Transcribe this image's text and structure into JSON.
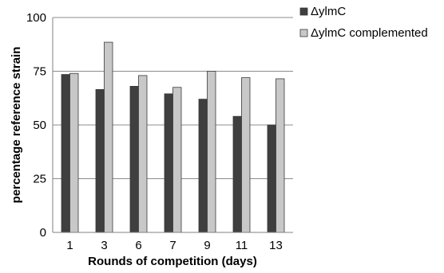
{
  "chart_data": {
    "type": "bar",
    "categories": [
      "1",
      "3",
      "6",
      "7",
      "9",
      "11",
      "13"
    ],
    "series": [
      {
        "name": "ΔylmC",
        "values": [
          73.5,
          66.5,
          68,
          64.5,
          62,
          54,
          50
        ],
        "color": "#3f3f3f"
      },
      {
        "name": "ΔylmC complemented",
        "values": [
          74,
          88.5,
          73,
          67.5,
          75,
          72,
          71.5
        ],
        "color": "#c8c8c8"
      }
    ],
    "title": "",
    "xlabel": "Rounds of competition (days)",
    "ylabel": "percentage reference strain",
    "ylim": [
      0,
      100
    ],
    "yticks": [
      0,
      25,
      50,
      75,
      100
    ],
    "grid": true,
    "legend_position": "top-right"
  }
}
